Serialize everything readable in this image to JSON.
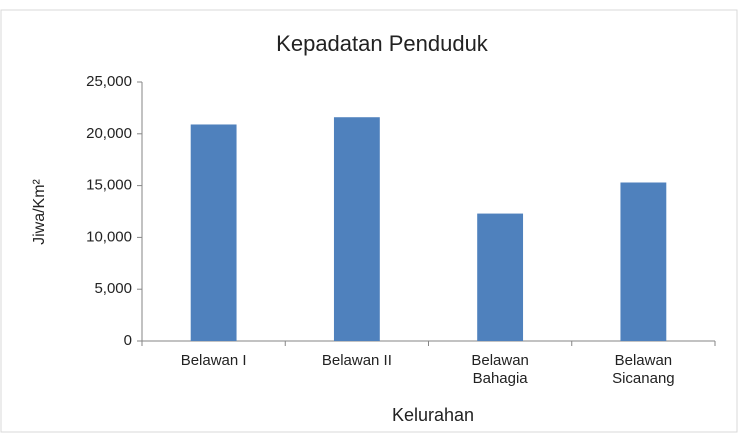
{
  "chart_data": {
    "type": "bar",
    "title": "Kepadatan Penduduk",
    "x_label": "Kelurahan",
    "y_label": "Jiwa/Km²",
    "categories": [
      "Belawan I",
      "Belawan II",
      "Belawan Bahagia",
      "Belawan Sicanang"
    ],
    "values": [
      20900,
      21600,
      12300,
      15300
    ],
    "color": "#4f81bd",
    "ylim": [
      0,
      25000
    ],
    "yticks": [
      0,
      {
        "value": 5000,
        "label": "5,000"
      },
      {
        "value": 10000,
        "label": "10,000"
      },
      {
        "value": 15000,
        "label": "15,000"
      },
      {
        "value": 20000,
        "label": "20,000"
      },
      {
        "value": 25000,
        "label": "25,000"
      }
    ],
    "grid": false
  }
}
